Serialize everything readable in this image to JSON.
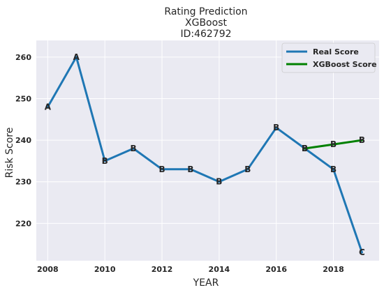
{
  "chart_data": {
    "type": "line",
    "title": "Rating Prediction",
    "subtitle": "XGBoost",
    "id_label": "ID:462792",
    "xlabel": "YEAR",
    "ylabel": "Risk Score",
    "xlim": [
      2007.6,
      2019.6
    ],
    "ylim": [
      211,
      264
    ],
    "x_ticks": [
      2008,
      2010,
      2012,
      2014,
      2016,
      2018
    ],
    "y_ticks": [
      220,
      230,
      240,
      250,
      260
    ],
    "grid": true,
    "legend_position": "top-right",
    "series": [
      {
        "name": "Real Score",
        "color": "#1f77b4",
        "x": [
          2008,
          2009,
          2010,
          2011,
          2012,
          2013,
          2014,
          2015,
          2016,
          2017,
          2018,
          2019
        ],
        "values": [
          248,
          260,
          235,
          238,
          233,
          233,
          230,
          233,
          243,
          238,
          233,
          213
        ],
        "labels": [
          "A",
          "A",
          "B",
          "B",
          "B",
          "B",
          "B",
          "B",
          "B",
          "B",
          "B",
          "C"
        ]
      },
      {
        "name": "XGBoost Score",
        "color": "#008000",
        "x": [
          2017,
          2018,
          2019
        ],
        "values": [
          238,
          239,
          240
        ],
        "labels": [
          "B",
          "B",
          "B"
        ]
      }
    ],
    "plot_background": "#eaeaf2"
  }
}
